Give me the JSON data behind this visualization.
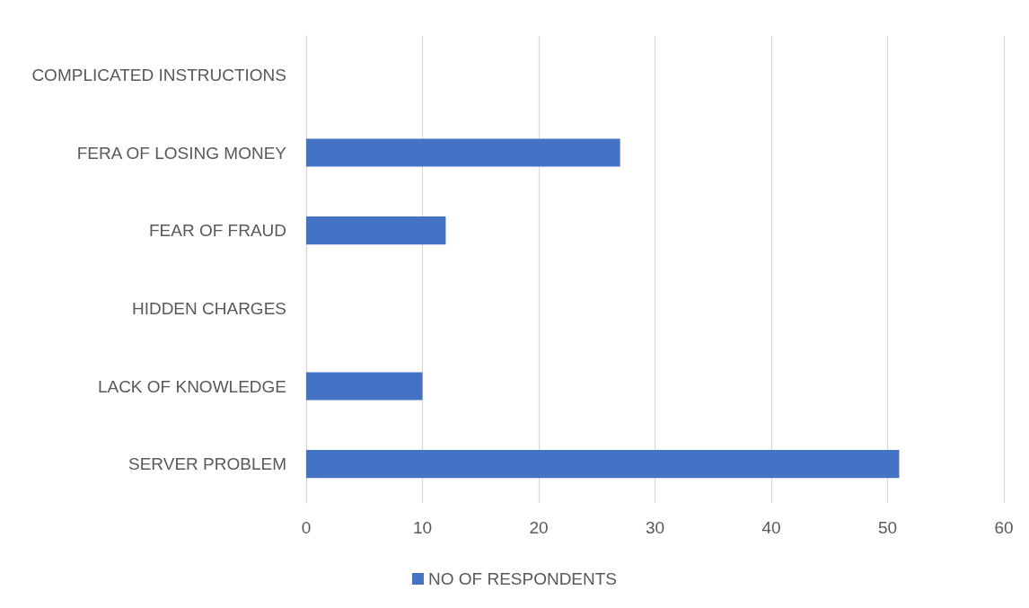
{
  "chart_data": {
    "type": "bar",
    "orientation": "horizontal",
    "categories": [
      "COMPLICATED INSTRUCTIONS",
      "FERA OF LOSING MONEY",
      "FEAR OF FRAUD",
      "HIDDEN CHARGES",
      "LACK OF KNOWLEDGE",
      "SERVER PROBLEM"
    ],
    "series": [
      {
        "name": "NO OF RESPONDENTS",
        "color": "#4472c4",
        "values": [
          0,
          27,
          12,
          0,
          10,
          51
        ]
      }
    ],
    "xlim": [
      0,
      60
    ],
    "xticks": [
      0,
      10,
      20,
      30,
      40,
      50,
      60
    ],
    "grid": "x",
    "legend": "bottom"
  }
}
